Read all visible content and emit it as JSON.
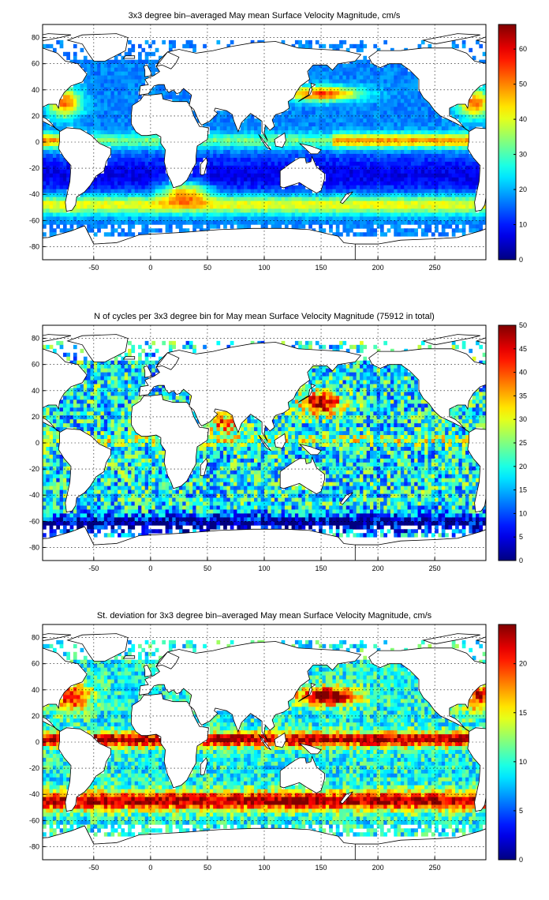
{
  "figure": {
    "panels": [
      {
        "title": "3x3 degree bin–averaged May mean Surface Velocity Magnitude, cm/s",
        "colorbar": {
          "min": 0,
          "max": 67,
          "ticks": [
            "0",
            "10",
            "20",
            "30",
            "40",
            "50",
            "60"
          ]
        }
      },
      {
        "title": "N of cycles per 3x3 degree bin for May mean Surface Velocity Magnitude (75912 in total)",
        "colorbar": {
          "min": 0,
          "max": 50,
          "ticks": [
            "0",
            "5",
            "10",
            "15",
            "20",
            "25",
            "30",
            "35",
            "40",
            "45",
            "50"
          ]
        }
      },
      {
        "title": "St. deviation for 3x3 degree bin–averaged May mean Surface Velocity Magnitude, cm/s",
        "colorbar": {
          "min": 0,
          "max": 24,
          "ticks": [
            "0",
            "5",
            "10",
            "15",
            "20"
          ]
        }
      }
    ],
    "axes": {
      "x_ticks": [
        "-50",
        "0",
        "50",
        "100",
        "150",
        "200",
        "250"
      ],
      "y_ticks": [
        "80",
        "60",
        "40",
        "20",
        "0",
        "-20",
        "-40",
        "-60",
        "-80"
      ],
      "xlim": [
        -95,
        295
      ],
      "ylim": [
        -90,
        90
      ],
      "grid": "dotted"
    },
    "colormap": "jet"
  }
}
